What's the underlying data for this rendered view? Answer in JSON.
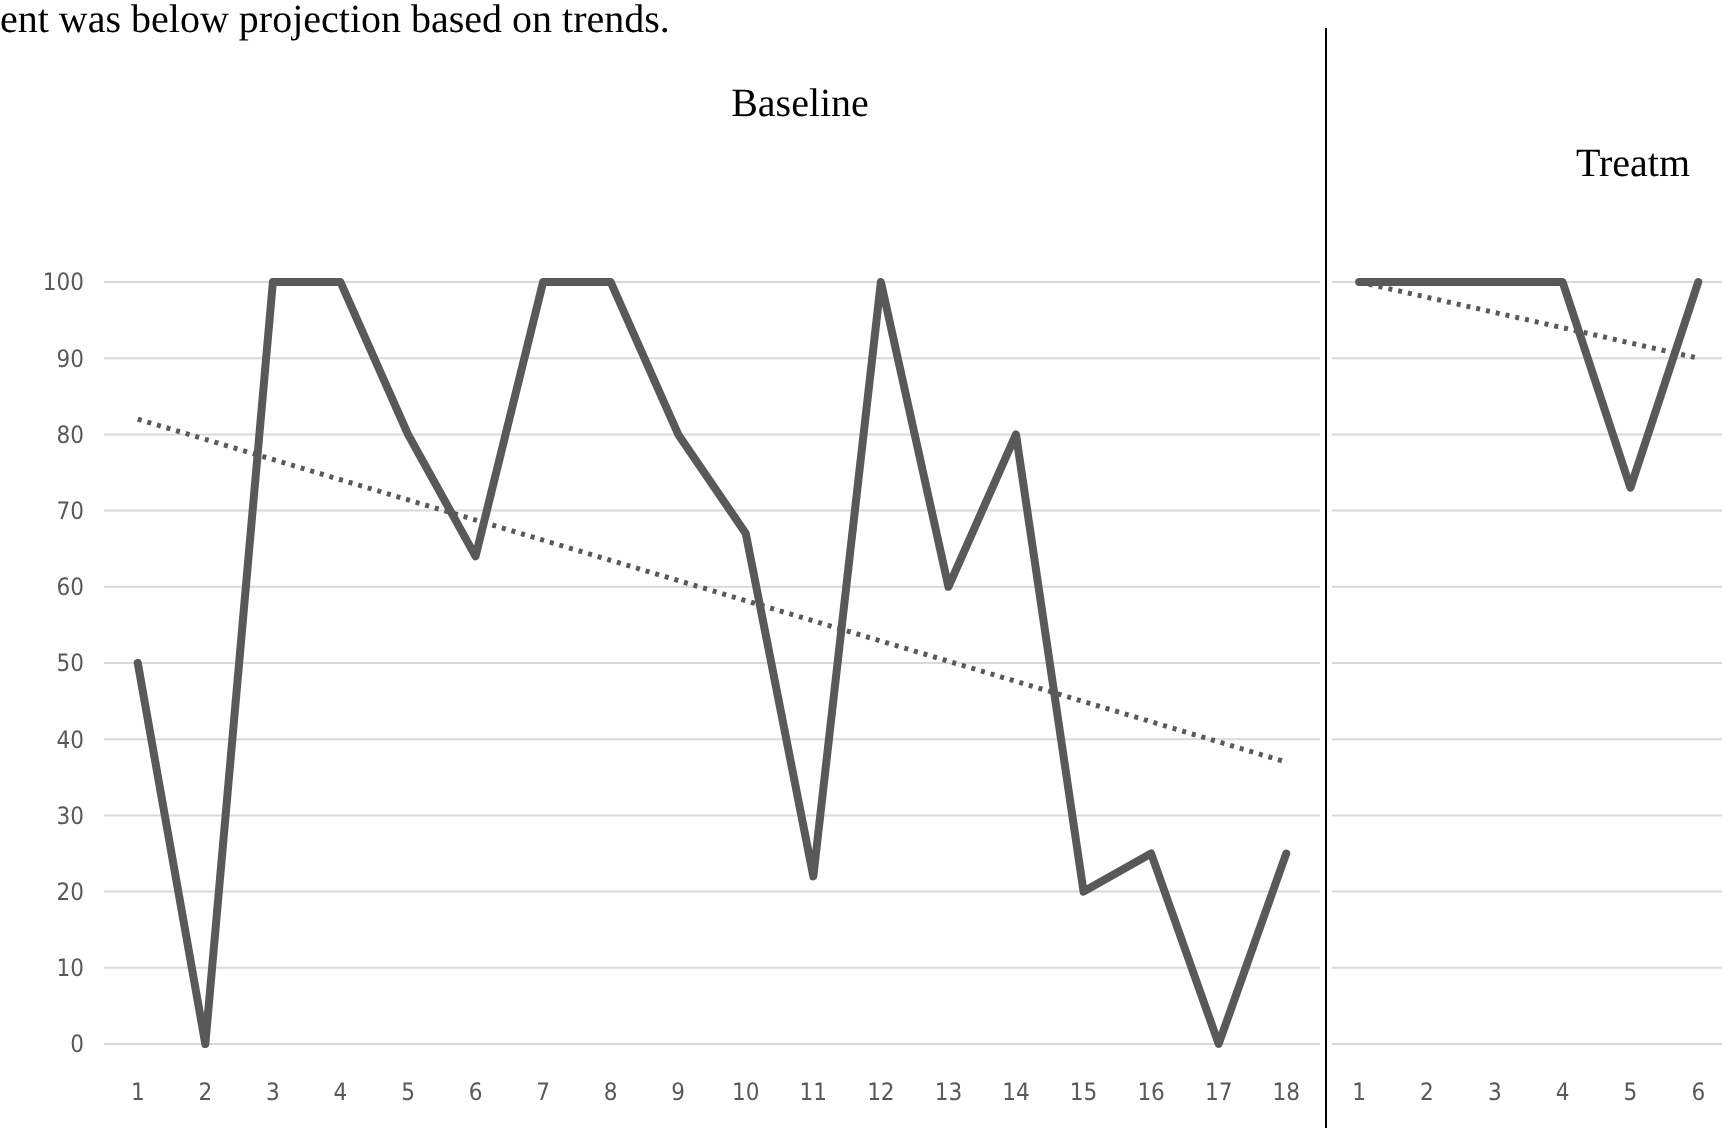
{
  "chart_data": [
    {
      "type": "line",
      "title": "Baseline",
      "annotations": [
        "ent was below projection based on trends."
      ],
      "x": [
        1,
        2,
        3,
        4,
        5,
        6,
        7,
        8,
        9,
        10,
        11,
        12,
        13,
        14,
        15,
        16,
        17,
        18
      ],
      "xlim": [
        0.5,
        18.5
      ],
      "xticks": [
        1,
        2,
        3,
        4,
        5,
        6,
        7,
        8,
        9,
        10,
        11,
        12,
        13,
        14,
        15,
        16,
        17,
        18
      ],
      "ylim": [
        0,
        100
      ],
      "yticks": [
        0,
        10,
        20,
        30,
        40,
        50,
        60,
        70,
        80,
        90,
        100
      ],
      "grid": "y",
      "marker": "none",
      "series": [
        {
          "color": "#595959",
          "values": [
            50,
            0,
            100,
            100,
            80,
            64,
            100,
            100,
            80,
            67,
            22,
            100,
            60,
            80,
            20,
            25,
            0,
            25
          ]
        },
        {
          "type": "line",
          "line_style": "dotted",
          "color": "#595959",
          "x": [
            1,
            18
          ],
          "values": [
            82,
            37
          ]
        }
      ]
    },
    {
      "type": "line",
      "title": "Treatm",
      "x": [
        1,
        2,
        3,
        4,
        5,
        6
      ],
      "xlim": [
        0.6,
        6.35
      ],
      "xticks": [
        1,
        2,
        3,
        4,
        5,
        6
      ],
      "ylim": [
        0,
        100
      ],
      "yticks": [
        0,
        10,
        20,
        30,
        40,
        50,
        60,
        70,
        80,
        90,
        100
      ],
      "tick_labels": "x",
      "grid": "y",
      "marker": "none",
      "series": [
        {
          "color": "#595959",
          "values": [
            100,
            100,
            100,
            100,
            73,
            100
          ]
        },
        {
          "type": "line",
          "line_style": "dotted",
          "color": "#595959",
          "x": [
            1,
            6
          ],
          "values": [
            100,
            90
          ]
        }
      ]
    }
  ]
}
